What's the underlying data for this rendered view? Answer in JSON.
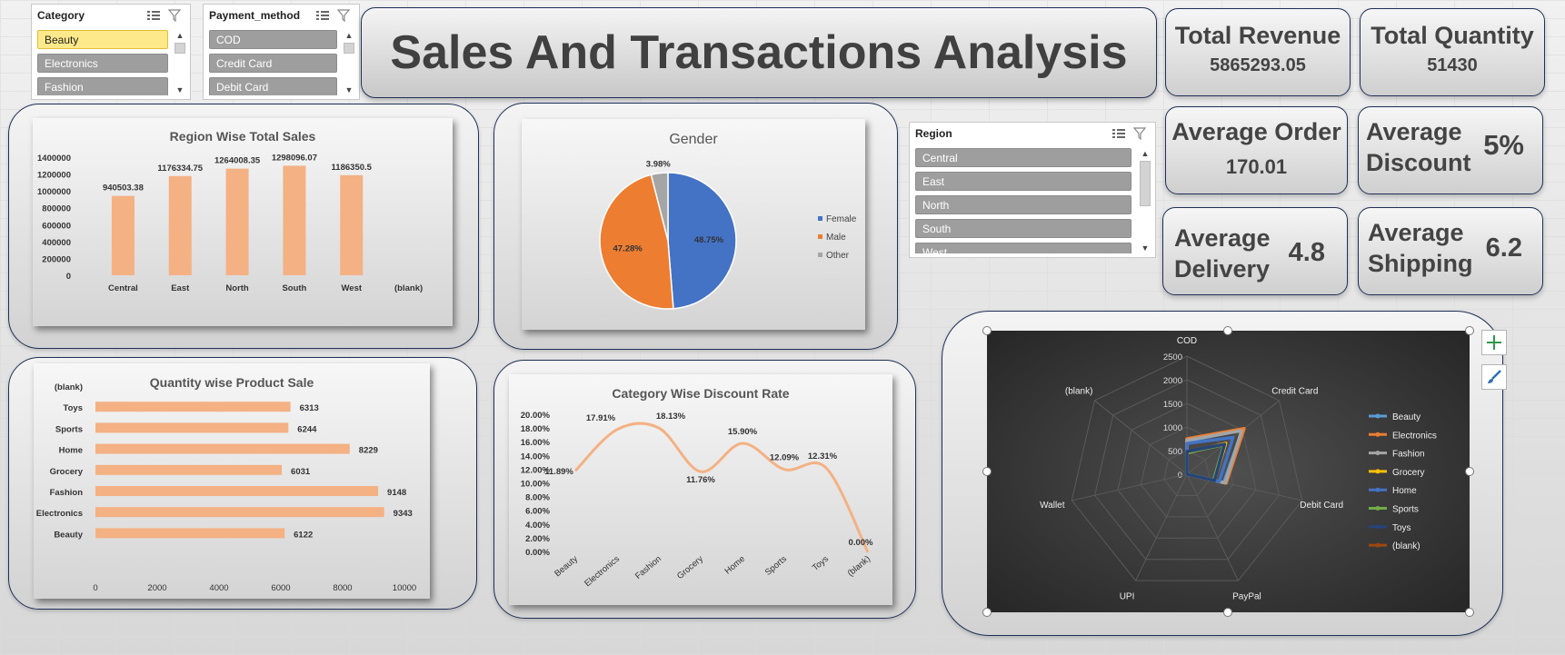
{
  "slicers": {
    "category": {
      "title": "Category",
      "items": [
        "Beauty",
        "Electronics",
        "Fashion"
      ],
      "selected": "Beauty"
    },
    "payment": {
      "title": "Payment_method",
      "items": [
        "COD",
        "Credit Card",
        "Debit Card"
      ]
    },
    "region": {
      "title": "Region",
      "items": [
        "Central",
        "East",
        "North",
        "South",
        "West"
      ]
    }
  },
  "title": "Sales And Transactions Analysis",
  "kpis": {
    "total_revenue": {
      "label": "Total Revenue",
      "value": "5865293.05"
    },
    "total_quantity": {
      "label": "Total Quantity",
      "value": "51430"
    },
    "avg_order": {
      "label": "Average Order",
      "value": "170.01"
    },
    "avg_discount": {
      "label1": "Average",
      "label2": "Discount",
      "value": "5%"
    },
    "avg_delivery": {
      "label1": "Average",
      "label2": "Delivery",
      "value": "4.8"
    },
    "avg_shipping": {
      "label1": "Average",
      "label2": "Shipping",
      "value": "6.2"
    }
  },
  "colors": {
    "bar": "#f4b183",
    "female": "#4472c4",
    "male": "#ed7d31",
    "other": "#a5a5a5",
    "curve": "#f4b183"
  },
  "chart_data": [
    {
      "id": "region_sales",
      "type": "bar",
      "title": "Region Wise Total Sales",
      "categories": [
        "Central",
        "East",
        "North",
        "South",
        "West",
        "(blank)"
      ],
      "values": [
        940503.38,
        1176334.75,
        1264008.35,
        1298096.07,
        1186350.5,
        null
      ],
      "labels": [
        "940503.38",
        "1176334.75",
        "1264008.35",
        "1298096.07",
        "1186350.5",
        ""
      ],
      "yticks": [
        "0",
        "200000",
        "400000",
        "600000",
        "800000",
        "1000000",
        "1200000",
        "1400000"
      ],
      "ylim": [
        0,
        1400000
      ],
      "grid": false
    },
    {
      "id": "gender",
      "type": "pie",
      "title": "Gender",
      "slices": [
        {
          "name": "Female",
          "value": 48.75,
          "label": "48.75%",
          "color": "#4472c4"
        },
        {
          "name": "Male",
          "value": 47.28,
          "label": "47.28%",
          "color": "#ed7d31"
        },
        {
          "name": "Other",
          "value": 3.98,
          "label": "3.98%",
          "color": "#a5a5a5"
        }
      ],
      "legend": "right"
    },
    {
      "id": "quantity_product",
      "type": "bar",
      "orientation": "horizontal",
      "title": "Quantity wise Product Sale",
      "categories": [
        "(blank)",
        "Toys",
        "Sports",
        "Home",
        "Grocery",
        "Fashion",
        "Electronics",
        "Beauty"
      ],
      "values": [
        null,
        6313,
        6244,
        8229,
        6031,
        9148,
        9343,
        6122
      ],
      "labels": [
        "",
        "6313",
        "6244",
        "8229",
        "6031",
        "9148",
        "9343",
        "6122"
      ],
      "xticks": [
        "0",
        "2000",
        "4000",
        "6000",
        "8000",
        "10000"
      ],
      "xlim": [
        0,
        10000
      ]
    },
    {
      "id": "category_discount",
      "type": "line",
      "title": "Category Wise Discount Rate",
      "categories": [
        "Beauty",
        "Electronics",
        "Fashion",
        "Grocery",
        "Home",
        "Sports",
        "Toys",
        "(blank)"
      ],
      "values": [
        11.89,
        17.91,
        18.13,
        11.76,
        15.9,
        12.09,
        12.31,
        0.0
      ],
      "labels": [
        "11.89%",
        "17.91%",
        "18.13%",
        "11.76%",
        "15.90%",
        "12.09%",
        "12.31%",
        "0.00%"
      ],
      "yticks": [
        "0.00%",
        "2.00%",
        "4.00%",
        "6.00%",
        "8.00%",
        "10.00%",
        "12.00%",
        "14.00%",
        "16.00%",
        "18.00%",
        "20.00%"
      ],
      "ylim": [
        0,
        20
      ]
    },
    {
      "id": "payment_radar",
      "type": "radar",
      "axes": [
        "COD",
        "Credit Card",
        "Debit Card",
        "PayPal",
        "UPI",
        "Wallet",
        "(blank)"
      ],
      "rticks": [
        "0",
        "500",
        "1000",
        "1500",
        "2000",
        "2500"
      ],
      "rlim": [
        0,
        2500
      ],
      "series": [
        {
          "name": "Beauty",
          "color": "#5b9bd5",
          "values": [
            700,
            1500,
            800,
            0,
            0,
            0,
            0
          ]
        },
        {
          "name": "Electronics",
          "color": "#ed7d31",
          "values": [
            750,
            1550,
            850,
            0,
            0,
            0,
            0
          ]
        },
        {
          "name": "Fashion",
          "color": "#a5a5a5",
          "values": [
            720,
            1480,
            830,
            0,
            0,
            0,
            0
          ]
        },
        {
          "name": "Grocery",
          "color": "#ffc000",
          "values": [
            450,
            1050,
            600,
            0,
            0,
            0,
            0
          ]
        },
        {
          "name": "Home",
          "color": "#4472c4",
          "values": [
            650,
            1250,
            700,
            0,
            0,
            0,
            0
          ]
        },
        {
          "name": "Sports",
          "color": "#70ad47",
          "values": [
            460,
            1000,
            580,
            0,
            0,
            0,
            0
          ]
        },
        {
          "name": "Toys",
          "color": "#264478",
          "values": [
            480,
            1020,
            600,
            0,
            0,
            0,
            0
          ]
        },
        {
          "name": "(blank)",
          "color": "#9e480e",
          "values": [
            0,
            0,
            0,
            0,
            0,
            0,
            0
          ]
        }
      ],
      "legend": "right"
    }
  ]
}
